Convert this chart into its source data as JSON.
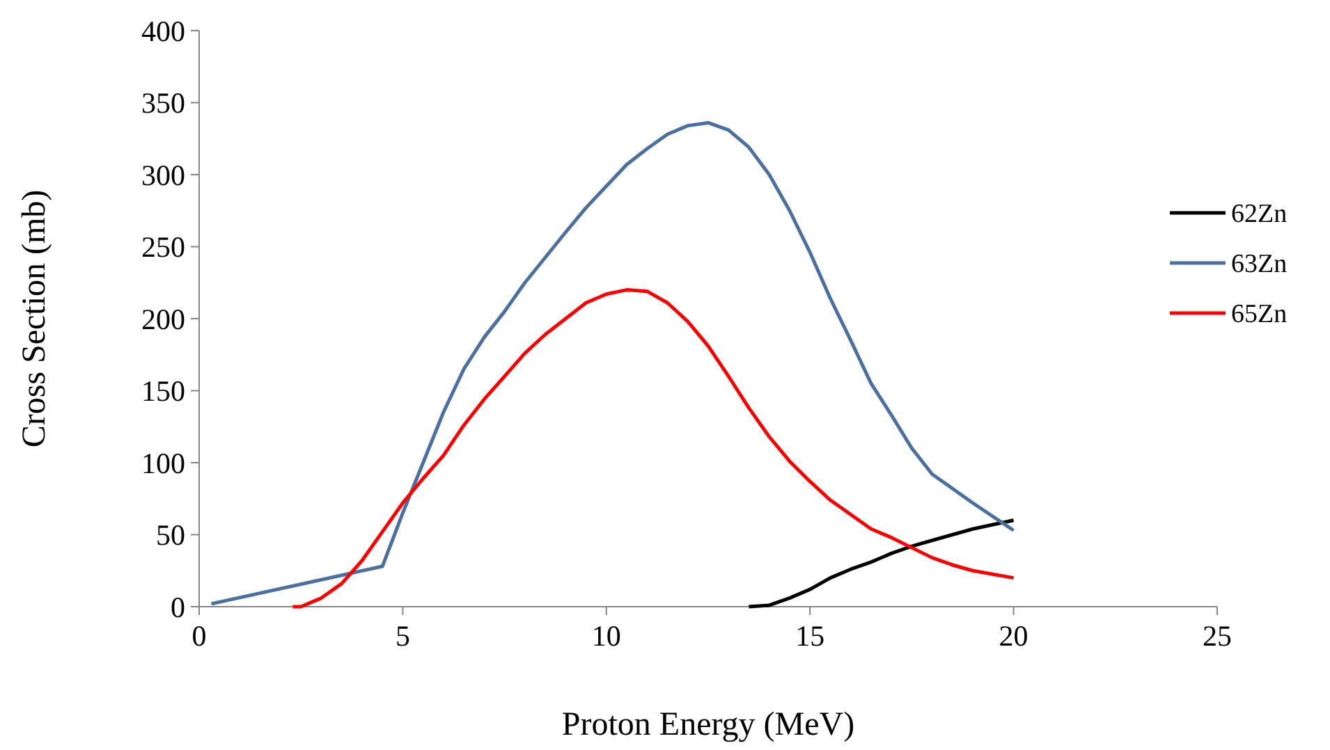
{
  "chart_data": {
    "type": "line",
    "xlabel": "Proton Energy (MeV)",
    "ylabel": "Cross Section (mb)",
    "xlim": [
      0,
      25
    ],
    "xticks": [
      0,
      5,
      10,
      15,
      20,
      25
    ],
    "ylim": [
      0,
      400
    ],
    "yticks": [
      0,
      50,
      100,
      150,
      200,
      250,
      300,
      350,
      400
    ],
    "grid": false,
    "legend": "right",
    "marker": "none",
    "line_style": "solid",
    "series": [
      {
        "name": "62Zn",
        "color": "#000000",
        "x": [
          13.5,
          14,
          14.5,
          15,
          15.5,
          16,
          16.5,
          17,
          17.5,
          18,
          18.5,
          19,
          20
        ],
        "values": [
          0,
          1,
          6,
          12,
          20,
          26,
          31,
          37,
          42,
          46,
          50,
          54,
          60
        ]
      },
      {
        "name": "63Zn",
        "color": "#4a6fa0",
        "x": [
          0.3,
          4.5,
          5,
          5.5,
          6,
          6.5,
          7,
          7.5,
          8,
          9,
          9.5,
          10,
          10.5,
          11,
          11.5,
          12,
          12.5,
          13,
          13.5,
          14,
          14.5,
          15,
          15.5,
          16,
          16.5,
          17,
          17.5,
          18,
          18.5,
          19,
          20
        ],
        "values": [
          2,
          28,
          65,
          100,
          135,
          165,
          187,
          205,
          225,
          260,
          277,
          292,
          307,
          318,
          328,
          334,
          336,
          331,
          319,
          300,
          275,
          246,
          214,
          185,
          155,
          133,
          110,
          92,
          82,
          72,
          53
        ]
      },
      {
        "name": "65Zn",
        "color": "#ff0000",
        "x": [
          2.3,
          2.5,
          3,
          3.5,
          4,
          4.5,
          5,
          5.5,
          6,
          6.5,
          7,
          7.5,
          8,
          8.5,
          9,
          9.5,
          10,
          10.5,
          11,
          11.5,
          12,
          12.5,
          13,
          13.5,
          14,
          14.5,
          15,
          15.5,
          16,
          16.5,
          17,
          17.5,
          18,
          18.5,
          19,
          20
        ],
        "values": [
          0,
          0,
          6,
          16,
          32,
          52,
          72,
          89,
          105,
          126,
          144,
          160,
          176,
          189,
          200,
          211,
          217,
          220,
          219,
          211,
          198,
          181,
          160,
          138,
          118,
          101,
          87,
          74,
          64,
          54,
          48,
          41,
          34,
          29,
          25,
          20
        ]
      }
    ]
  }
}
